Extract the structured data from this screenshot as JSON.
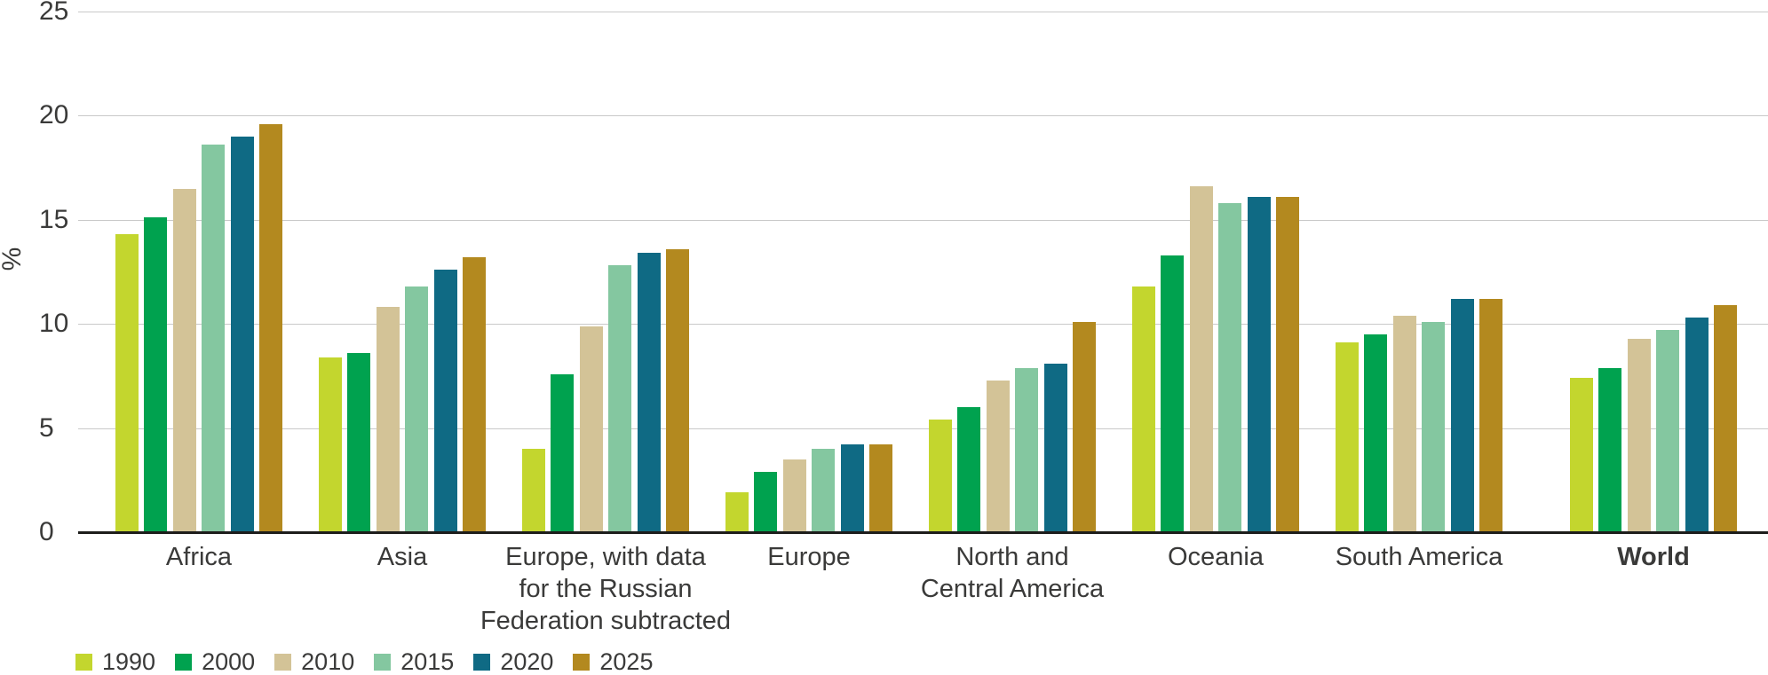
{
  "chart_data": {
    "type": "bar",
    "title": "",
    "xlabel": "",
    "ylabel": "%",
    "ylim": [
      0,
      25
    ],
    "yticks": [
      0,
      5,
      10,
      15,
      20,
      25
    ],
    "grid": true,
    "legend_position": "bottom-left",
    "categories": [
      "Africa",
      "Asia",
      "Europe, with data\nfor the Russian\nFederation subtracted",
      "Europe",
      "North and\nCentral America",
      "Oceania",
      "South America",
      "World"
    ],
    "emphasized_category": "World",
    "series": [
      {
        "name": "1990",
        "color": "#c3d62e",
        "values": [
          14.3,
          8.4,
          4.0,
          1.9,
          5.4,
          11.8,
          9.1,
          7.4
        ]
      },
      {
        "name": "2000",
        "color": "#00a24f",
        "values": [
          15.1,
          8.6,
          7.6,
          2.9,
          6.0,
          13.3,
          9.5,
          7.9
        ]
      },
      {
        "name": "2010",
        "color": "#d3c397",
        "values": [
          16.5,
          10.8,
          9.9,
          3.5,
          7.3,
          16.6,
          10.4,
          9.3
        ]
      },
      {
        "name": "2015",
        "color": "#84c7a0",
        "values": [
          18.6,
          11.8,
          12.8,
          4.0,
          7.9,
          15.8,
          10.1,
          9.7
        ]
      },
      {
        "name": "2020",
        "color": "#0f6a84",
        "values": [
          19.0,
          12.6,
          13.4,
          4.2,
          8.1,
          16.1,
          11.2,
          10.3
        ]
      },
      {
        "name": "2025",
        "color": "#b3891f",
        "values": [
          19.6,
          13.2,
          13.6,
          4.2,
          10.1,
          16.1,
          11.2,
          10.9
        ]
      }
    ],
    "axis_colors": {
      "gridline": "#c9c9c9",
      "baseline": "#1d1d1b",
      "text": "#3a3a39"
    }
  }
}
